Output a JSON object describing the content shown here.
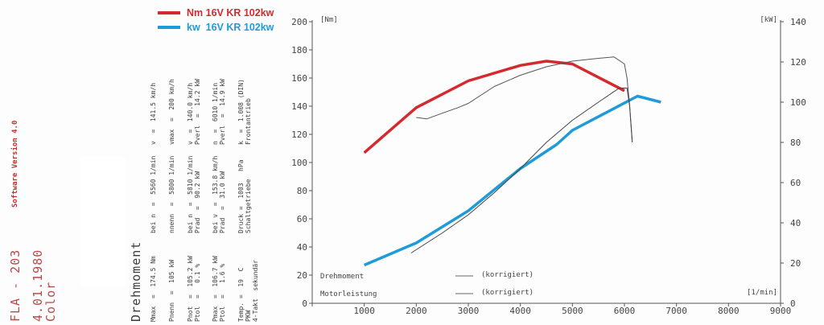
{
  "left_text": {
    "software": "Software Version 4.0",
    "fla": "FLA - 203",
    "date": "4.01.1980",
    "colour": "Color",
    "heading": "Drehmoment"
  },
  "spec_columns": [
    {
      "l1": "Mmax  =  174.5 Nm",
      "l2": "Pnenn  =  105 kW",
      "l3": "Pnot  =  105.2 kW",
      "l4": "Ptol  =   0.1 %",
      "l5": "Pmax  =  106.7 kW",
      "l6": "Ptol  =   1.6 %",
      "l7": "Temp. =  19  C",
      "l8": "PKW",
      "l9": "4-Takt  sekundär"
    },
    {
      "l1": "bei n  =  5560 1/min",
      "l2": "nnenn  =  5800 1/min",
      "l3": "bei n  =  5810 1/min",
      "l4": "Prad  =  90.2 kW",
      "l5": "bei v  =  153.8 km/h",
      "l6": "Prad  =  31.0 kW",
      "l7": "Druck =  1003   hPa",
      "l8": "Schaltgetriebe",
      "l9": ""
    },
    {
      "l1": "v  =  141.5 km/h",
      "l2": "vmax  =  200 km/h",
      "l3": "v  =  140.0 km/h",
      "l4": "Pverl  =  14.2 kW",
      "l5": "n  =  6010 1/min",
      "l6": "Pverl  =  14.9 kW",
      "l7": "k  =  1.008 (DIN)",
      "l8": "Frontantrieb",
      "l9": ""
    }
  ],
  "legend_top": [
    {
      "label": "Nm 16V KR 102kw",
      "color": "#d42a2f"
    },
    {
      "label": "kw  16V KR 102kw",
      "color": "#1f9bd8"
    }
  ],
  "legend_bottom": [
    {
      "label": "Drehmoment",
      "status": "(korrigiert)"
    },
    {
      "label": "Motorleistung",
      "status": "(korrigiert)"
    }
  ],
  "chart_data": {
    "type": "line",
    "x_label": "[1/min]",
    "y_left_label": "[Nm]",
    "y_right_label": "[kW]",
    "xlim": [
      0,
      9000
    ],
    "ylim_left": [
      0,
      200
    ],
    "ylim_right": [
      0,
      140
    ],
    "x_ticks": [
      0,
      1000,
      2000,
      3000,
      4000,
      5000,
      6000,
      7000,
      8000,
      9000
    ],
    "y_left_ticks": [
      0,
      20,
      40,
      60,
      80,
      100,
      120,
      140,
      160,
      180,
      200
    ],
    "y_right_ticks": [
      0,
      20,
      40,
      60,
      80,
      100,
      120,
      140
    ],
    "series": [
      {
        "name": "Nm 16V KR 102kw",
        "axis": "left",
        "color": "#d42a2f",
        "x": [
          1000,
          2000,
          3000,
          4000,
          4500,
          5000,
          6000
        ],
        "y": [
          107,
          139,
          158,
          169,
          172,
          170,
          151
        ]
      },
      {
        "name": "kw  16V KR 102kw",
        "axis": "right",
        "color": "#1f9bd8",
        "x": [
          1000,
          2000,
          3000,
          4000,
          4700,
          5000,
          6250,
          6700
        ],
        "y": [
          19,
          30,
          46,
          67,
          79,
          86,
          103,
          100
        ]
      },
      {
        "name": "Drehmoment (korrigiert)",
        "axis": "left",
        "color": "#555555",
        "x": [
          2000,
          2200,
          2500,
          2800,
          3000,
          3500,
          4000,
          4500,
          5000,
          5500,
          5800,
          6000,
          6050,
          6100,
          6150
        ],
        "y": [
          132,
          131,
          135,
          139,
          142,
          154,
          162,
          168,
          172,
          174,
          175,
          170,
          160,
          140,
          115
        ]
      },
      {
        "name": "Motorleistung (korrigiert)",
        "axis": "right",
        "color": "#444444",
        "x": [
          1900,
          2500,
          3000,
          3500,
          4000,
          4500,
          5000,
          5500,
          5900,
          6050,
          6100,
          6150
        ],
        "y": [
          25,
          35,
          44,
          55,
          67,
          80,
          91,
          100,
          107,
          107,
          98,
          80
        ]
      }
    ]
  }
}
